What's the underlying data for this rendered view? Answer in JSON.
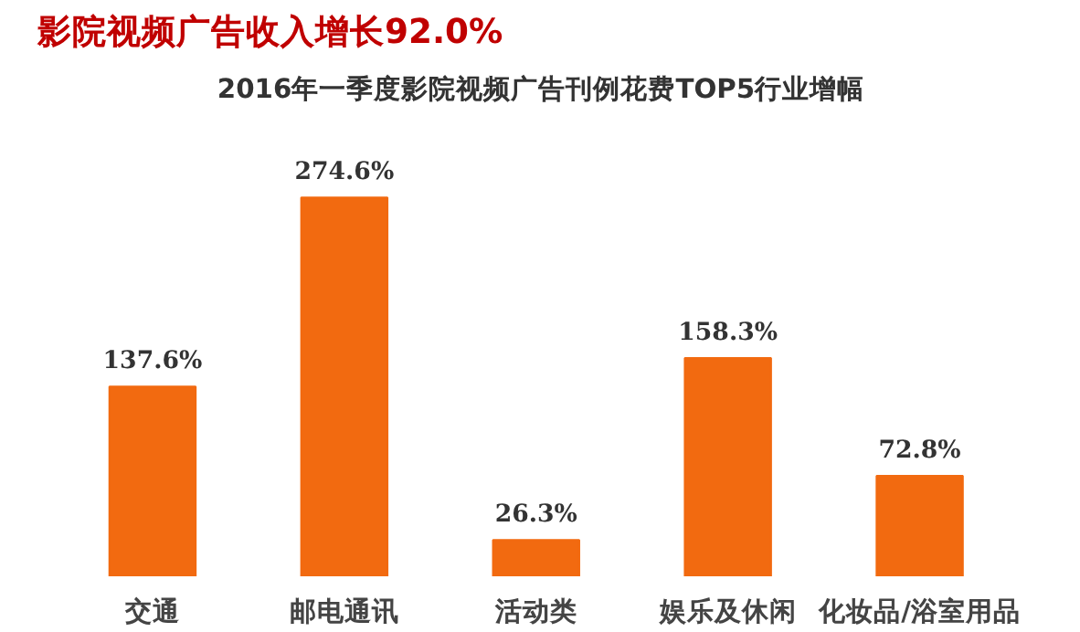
{
  "chart_data": {
    "type": "bar",
    "title": "影院视频广告收入增长92.0%",
    "subtitle": "2016年一季度影院视频广告刊例花费TOP5行业增幅",
    "categories": [
      "交通",
      "邮电通讯",
      "活动类",
      "娱乐及休闲",
      "化妆品/浴室用品"
    ],
    "values": [
      137.6,
      274.6,
      26.3,
      158.3,
      72.8
    ],
    "value_labels": [
      "137.6%",
      "274.6%",
      "26.3%",
      "158.3%",
      "72.8%"
    ],
    "color": "#f26a10",
    "grid": false
  }
}
